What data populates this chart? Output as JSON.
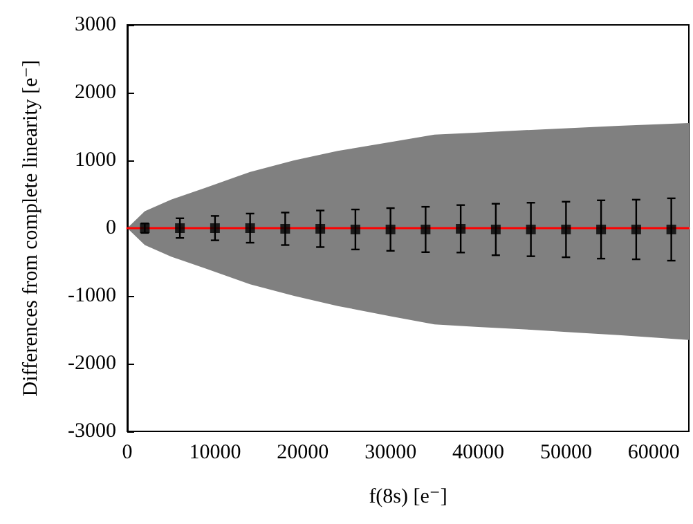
{
  "chart_data": {
    "type": "scatter",
    "xlabel": "f(8s) [e⁻]",
    "ylabel": "Differences from complete linearity [e⁻]",
    "xlim": [
      0,
      64000
    ],
    "xticks": [
      0,
      10000,
      20000,
      30000,
      40000,
      50000,
      60000
    ],
    "ylim": [
      -3000,
      3000
    ],
    "yticks": [
      -3000,
      -2000,
      -1000,
      0,
      1000,
      2000,
      3000
    ],
    "grid": false,
    "series": [
      {
        "type": "line",
        "color": "#ff0000",
        "x": [
          0,
          2000,
          5000,
          9000,
          14000,
          19000,
          24000,
          30000,
          35000,
          40000,
          46000,
          51000,
          56000,
          64000
        ],
        "values": [
          0,
          0,
          0,
          0,
          0,
          0,
          0,
          0,
          0,
          0,
          0,
          0,
          0,
          0
        ],
        "lower": [
          0,
          -250,
          -420,
          -600,
          -830,
          -1000,
          -1150,
          -1300,
          -1420,
          -1460,
          -1500,
          -1540,
          -1580,
          -1650
        ],
        "upper": [
          0,
          250,
          420,
          600,
          830,
          1000,
          1140,
          1270,
          1380,
          1410,
          1450,
          1480,
          1510,
          1550
        ]
      },
      {
        "color": "#000000",
        "marker": "square",
        "x": [
          2000,
          6000,
          10000,
          14000,
          18000,
          22000,
          26000,
          30000,
          34000,
          38000,
          42000,
          46000,
          50000,
          54000,
          58000,
          62000
        ],
        "values": [
          0,
          0,
          0,
          0,
          -10,
          -10,
          -20,
          -20,
          -20,
          -10,
          -20,
          -20,
          -20,
          -20,
          -20,
          -20
        ],
        "errors": [
          70,
          145,
          180,
          215,
          240,
          270,
          295,
          315,
          335,
          350,
          380,
          395,
          410,
          430,
          440,
          460
        ]
      }
    ]
  }
}
